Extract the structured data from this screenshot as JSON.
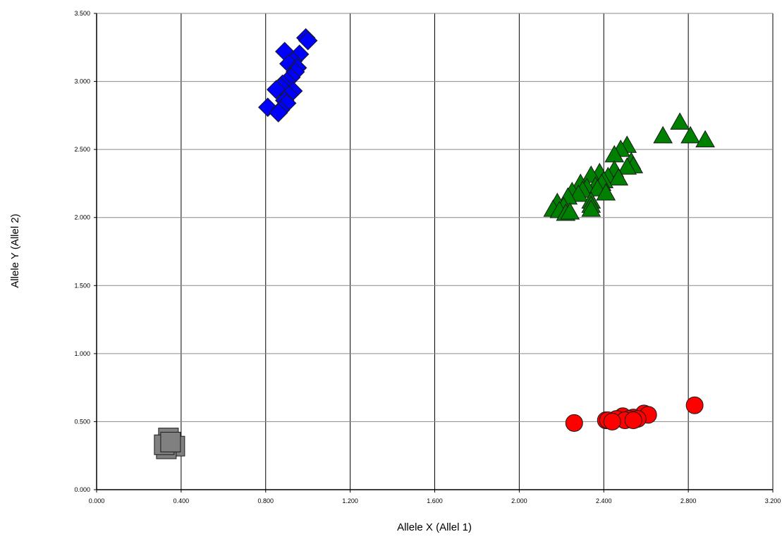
{
  "chart_data": {
    "type": "scatter",
    "xlabel": "Allele X (Allel 1)",
    "ylabel": "Allele Y (Allel 2)",
    "xlim": [
      0,
      3.2
    ],
    "ylim": [
      0,
      3.5
    ],
    "x_ticks": [
      "0.000",
      "0.400",
      "0.800",
      "1.200",
      "1.600",
      "2.000",
      "2.400",
      "2.800",
      "3.200"
    ],
    "y_ticks": [
      "0.000",
      "0.500",
      "1.000",
      "1.500",
      "2.000",
      "2.500",
      "3.000",
      "3.500"
    ],
    "grid": true,
    "series": [
      {
        "marker": "diamond",
        "color": "#0000ff",
        "points": [
          [
            0.99,
            3.32
          ],
          [
            1.0,
            3.3
          ],
          [
            0.89,
            3.22
          ],
          [
            0.96,
            3.2
          ],
          [
            0.93,
            3.15
          ],
          [
            0.91,
            3.13
          ],
          [
            0.95,
            3.1
          ],
          [
            0.94,
            3.07
          ],
          [
            0.92,
            3.03
          ],
          [
            0.9,
            3.0
          ],
          [
            0.88,
            2.98
          ],
          [
            0.87,
            2.96
          ],
          [
            0.85,
            2.94
          ],
          [
            0.93,
            2.93
          ],
          [
            0.91,
            2.9
          ],
          [
            0.89,
            2.86
          ],
          [
            0.9,
            2.84
          ],
          [
            0.81,
            2.81
          ],
          [
            0.87,
            2.79
          ],
          [
            0.86,
            2.77
          ]
        ]
      },
      {
        "marker": "triangle",
        "color": "#008000",
        "points": [
          [
            2.76,
            2.7
          ],
          [
            2.68,
            2.6
          ],
          [
            2.81,
            2.6
          ],
          [
            2.88,
            2.57
          ],
          [
            2.51,
            2.53
          ],
          [
            2.48,
            2.5
          ],
          [
            2.45,
            2.46
          ],
          [
            2.53,
            2.41
          ],
          [
            2.54,
            2.38
          ],
          [
            2.51,
            2.37
          ],
          [
            2.45,
            2.35
          ],
          [
            2.38,
            2.33
          ],
          [
            2.34,
            2.31
          ],
          [
            2.42,
            2.3
          ],
          [
            2.47,
            2.29
          ],
          [
            2.4,
            2.27
          ],
          [
            2.39,
            2.25
          ],
          [
            2.29,
            2.25
          ],
          [
            2.36,
            2.23
          ],
          [
            2.32,
            2.22
          ],
          [
            2.37,
            2.21
          ],
          [
            2.3,
            2.2
          ],
          [
            2.25,
            2.19
          ],
          [
            2.41,
            2.18
          ],
          [
            2.28,
            2.17
          ],
          [
            2.23,
            2.15
          ],
          [
            2.34,
            2.12
          ],
          [
            2.18,
            2.11
          ],
          [
            2.34,
            2.09
          ],
          [
            2.21,
            2.08
          ],
          [
            2.16,
            2.06
          ],
          [
            2.34,
            2.06
          ],
          [
            2.19,
            2.05
          ],
          [
            2.22,
            2.03
          ],
          [
            2.24,
            2.04
          ]
        ]
      },
      {
        "marker": "circle",
        "color": "#ff0000",
        "points": [
          [
            2.83,
            0.62
          ],
          [
            2.59,
            0.56
          ],
          [
            2.61,
            0.55
          ],
          [
            2.49,
            0.54
          ],
          [
            2.54,
            0.53
          ],
          [
            2.46,
            0.52
          ],
          [
            2.52,
            0.52
          ],
          [
            2.56,
            0.52
          ],
          [
            2.41,
            0.51
          ],
          [
            2.42,
            0.51
          ],
          [
            2.5,
            0.51
          ],
          [
            2.26,
            0.49
          ],
          [
            2.44,
            0.5
          ],
          [
            2.54,
            0.51
          ]
        ]
      },
      {
        "marker": "square",
        "color": "#808080",
        "points": [
          [
            0.34,
            0.38
          ],
          [
            0.37,
            0.32
          ],
          [
            0.33,
            0.3
          ],
          [
            0.32,
            0.33
          ],
          [
            0.35,
            0.35
          ]
        ]
      }
    ]
  }
}
